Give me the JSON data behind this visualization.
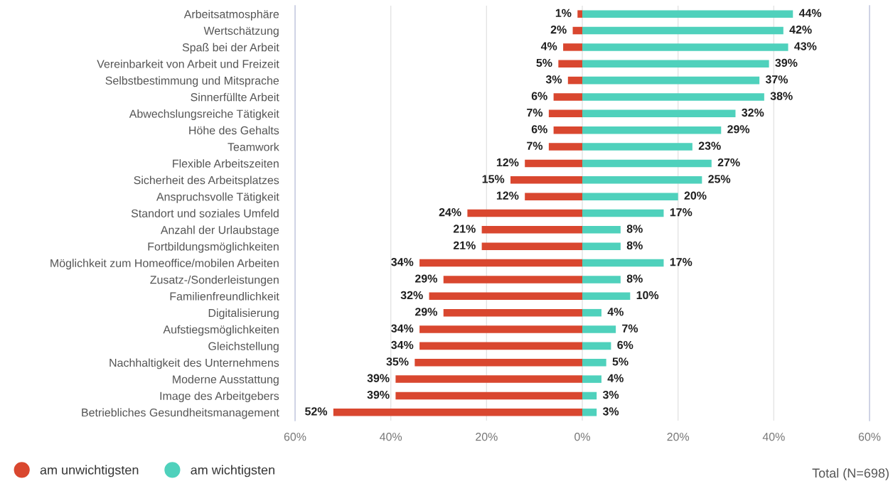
{
  "chart_data": [
    {
      "type": "bar",
      "orientation": "horizontal",
      "categories": [
        "Arbeitsatmosphäre",
        "Wertschätzung",
        "Spaß bei der Arbeit",
        "Vereinbarkeit von Arbeit und Freizeit",
        "Selbstbestimmung und Mitsprache",
        "Sinnerfüllte Arbeit",
        "Abwechslungsreiche Tätigkeit",
        "Höhe des Gehalts",
        "Teamwork",
        "Flexible Arbeitszeiten",
        "Sicherheit des Arbeitsplatzes",
        "Anspruchsvolle Tätigkeit",
        "Standort und soziales Umfeld",
        "Anzahl der Urlaubstage",
        "Fortbildungsmöglichkeiten",
        "Möglichkeit zum Homeoffice/mobilen Arbeiten",
        "Zusatz-/Sonderleistungen",
        "Familienfreundlichkeit",
        "Digitalisierung",
        "Aufstiegsmöglichkeiten",
        "Gleichstellung",
        "Nachhaltigkeit des Unternehmens",
        "Moderne Ausstattung",
        "Image des Arbeitgebers",
        "Betriebliches Gesundheitsmanagement"
      ],
      "series": [
        {
          "name": "am unwichtigsten",
          "color": "#d9472f",
          "values": [
            1,
            2,
            4,
            5,
            3,
            6,
            7,
            6,
            7,
            12,
            15,
            12,
            24,
            21,
            21,
            34,
            29,
            32,
            29,
            34,
            34,
            35,
            39,
            39,
            52
          ],
          "value_labels": [
            "1%",
            "2%",
            "4%",
            "5%",
            "3%",
            "6%",
            "7%",
            "6%",
            "7%",
            "12%",
            "15%",
            "12%",
            "24%",
            "21%",
            "21%",
            "34%",
            "29%",
            "32%",
            "29%",
            "34%",
            "34%",
            "35%",
            "39%",
            "39%",
            "52%"
          ]
        }
      ],
      "xlim": [
        60,
        0
      ],
      "xticks": [
        {
          "value": 60,
          "label": "60%"
        },
        {
          "value": 40,
          "label": "40%"
        },
        {
          "value": 20,
          "label": "20%"
        },
        {
          "value": 0,
          "label": null
        }
      ],
      "grid": "x",
      "legend": "bottom left"
    },
    {
      "type": "bar",
      "orientation": "horizontal",
      "categories": [
        null,
        null,
        null,
        null,
        null,
        null,
        null,
        null,
        null,
        null,
        null,
        null,
        null,
        null,
        null,
        null,
        null,
        null,
        null,
        null,
        null,
        null,
        null,
        null,
        null
      ],
      "series": [
        {
          "name": "am wichtigsten",
          "color": "#4fd1bc",
          "values": [
            44,
            42,
            43,
            39,
            37,
            38,
            32,
            29,
            23,
            27,
            25,
            20,
            17,
            8,
            8,
            17,
            8,
            10,
            4,
            7,
            6,
            5,
            4,
            3,
            3
          ],
          "value_labels": [
            "44%",
            "42%",
            "43%",
            "39%",
            "37%",
            "38%",
            "32%",
            "29%",
            "23%",
            "27%",
            "25%",
            "20%",
            "17%",
            "8%",
            "8%",
            "17%",
            "8%",
            "10%",
            "4%",
            "7%",
            "6%",
            "5%",
            "4%",
            "3%",
            "3%"
          ]
        }
      ],
      "xlim": [
        0,
        60
      ],
      "xticks": [
        {
          "value": 0,
          "label": "0%"
        },
        {
          "value": 20,
          "label": "20%"
        },
        {
          "value": 40,
          "label": "40%"
        },
        {
          "value": 60,
          "label": "60%"
        }
      ],
      "grid": "x",
      "legend": "bottom left",
      "tick_labels": "x",
      "annotations": [
        "Total (N=698)"
      ]
    }
  ]
}
